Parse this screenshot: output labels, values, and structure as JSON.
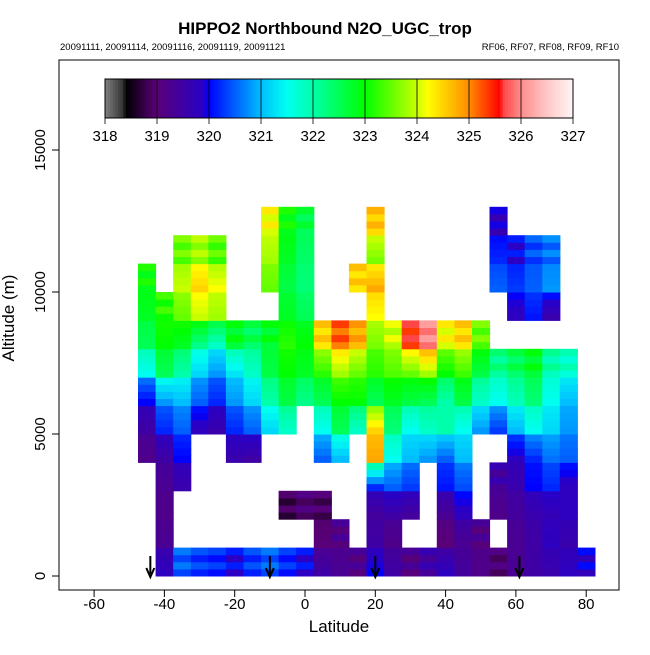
{
  "chart_data": {
    "type": "heatmap",
    "title": "HIPPO2 Northbound N2O_UGC_trop",
    "subtitle_left": "20091111, 20091114, 20091116, 20091119, 20091121",
    "subtitle_right": "RF06, RF07, RF08, RF09, RF10",
    "xlabel": "Latitude",
    "ylabel": "Altitude (m)",
    "xlim": [
      -70,
      90
    ],
    "ylim": [
      0,
      17500
    ],
    "xticks": [
      -60,
      -40,
      -20,
      0,
      20,
      40,
      60,
      80
    ],
    "yticks": [
      0,
      5000,
      10000,
      15000
    ],
    "colorbar": {
      "ticks": [
        318,
        319,
        320,
        321,
        322,
        323,
        324,
        325,
        326,
        327
      ],
      "range": [
        318,
        327
      ],
      "placement": "top"
    },
    "flight_markers_latitude": [
      -44,
      -10,
      20,
      61
    ],
    "lat_bins": [
      -45,
      -40,
      -35,
      -30,
      -25,
      -20,
      -15,
      -10,
      -5,
      0,
      5,
      10,
      15,
      20,
      25,
      30,
      35,
      40,
      45,
      50,
      55,
      60,
      65,
      70,
      75,
      80
    ],
    "alt_bins": [
      0,
      1000,
      2000,
      3000,
      4000,
      5000,
      6000,
      7000,
      8000,
      9000,
      10000,
      11000,
      12000
    ],
    "values": [
      [
        null,
        319.8,
        320.5,
        320.3,
        320.2,
        320,
        320.3,
        320.5,
        320.2,
        320,
        319.5,
        319.3,
        319.2,
        320,
        319.5,
        319.2,
        319.5,
        319.8,
        319.4,
        319.2,
        319,
        319.3,
        319.5,
        319.6,
        319.8,
        319.9
      ],
      [
        null,
        319.3,
        null,
        null,
        null,
        null,
        null,
        null,
        null,
        null,
        319,
        319.2,
        null,
        319.5,
        319.2,
        null,
        null,
        319,
        319.3,
        319.2,
        null,
        319.3,
        319.5,
        319.8,
        319.6,
        null
      ],
      [
        null,
        319.2,
        null,
        null,
        null,
        null,
        null,
        null,
        318.8,
        319,
        318.9,
        null,
        null,
        319.4,
        319.5,
        319.4,
        null,
        319.3,
        319.8,
        null,
        319.2,
        319.4,
        319.6,
        319.7,
        319.8,
        null
      ],
      [
        null,
        319.3,
        319.6,
        null,
        null,
        null,
        null,
        null,
        null,
        null,
        null,
        null,
        null,
        320.2,
        320.5,
        320.3,
        null,
        320.1,
        320.4,
        null,
        319.5,
        319.6,
        320,
        320.2,
        319.8,
        null
      ],
      [
        319.2,
        319.5,
        320,
        null,
        null,
        319.6,
        319.5,
        null,
        null,
        null,
        320.5,
        321,
        null,
        324.8,
        321.5,
        321,
        320.8,
        320.5,
        321,
        null,
        null,
        319.8,
        320.2,
        320.6,
        320.5,
        null
      ],
      [
        319.5,
        320.2,
        320.5,
        319.8,
        319.6,
        320.2,
        320.5,
        321.2,
        321.8,
        null,
        321.5,
        322.5,
        321.8,
        324.5,
        322.3,
        321.5,
        321.8,
        322,
        321.5,
        320.8,
        320.3,
        321,
        321.5,
        321.2,
        320.8,
        null
      ],
      [
        320,
        320.8,
        321,
        320.5,
        320.2,
        320.8,
        321.2,
        322,
        322.6,
        322.2,
        322.5,
        323,
        323,
        322.5,
        322.8,
        322.6,
        322.5,
        322,
        322.6,
        321.8,
        321.5,
        321.9,
        322.3,
        321.5,
        321,
        null
      ],
      [
        321.5,
        322.5,
        322,
        321.2,
        320.8,
        321.3,
        321.8,
        322.6,
        323,
        322.8,
        323.2,
        323.8,
        323.5,
        323.2,
        323.4,
        323.5,
        323.8,
        323,
        323.3,
        322.6,
        322.2,
        322.5,
        322.8,
        322,
        321.8,
        null
      ],
      [
        322.5,
        323,
        322.8,
        322.2,
        321.8,
        322.8,
        322.5,
        322.8,
        323.2,
        323,
        324.5,
        325.2,
        324.8,
        323.6,
        324,
        325.5,
        326,
        324.2,
        324.5,
        323.5,
        null,
        null,
        null,
        null,
        null,
        null
      ],
      [
        322.8,
        323.2,
        323.5,
        324,
        323.8,
        null,
        null,
        null,
        322.8,
        322.5,
        null,
        null,
        null,
        324.2,
        null,
        null,
        null,
        null,
        null,
        null,
        null,
        319.8,
        320.1,
        319.6,
        null,
        null
      ],
      [
        323,
        null,
        324,
        324.5,
        324.2,
        null,
        null,
        323.5,
        322.6,
        322.3,
        null,
        null,
        324.5,
        324.8,
        null,
        null,
        null,
        null,
        null,
        null,
        320.5,
        320.3,
        320.5,
        320.8,
        null,
        null
      ],
      [
        null,
        null,
        323.5,
        323.8,
        323.4,
        null,
        null,
        323.8,
        322.8,
        322.4,
        null,
        null,
        null,
        323.6,
        null,
        null,
        null,
        null,
        null,
        null,
        320.2,
        320,
        320.4,
        320.6,
        null,
        null
      ],
      [
        null,
        null,
        null,
        null,
        null,
        null,
        null,
        324.2,
        323,
        322.6,
        null,
        null,
        null,
        324.6,
        null,
        null,
        null,
        null,
        null,
        null,
        319.8,
        null,
        null,
        null,
        null,
        null
      ]
    ]
  }
}
